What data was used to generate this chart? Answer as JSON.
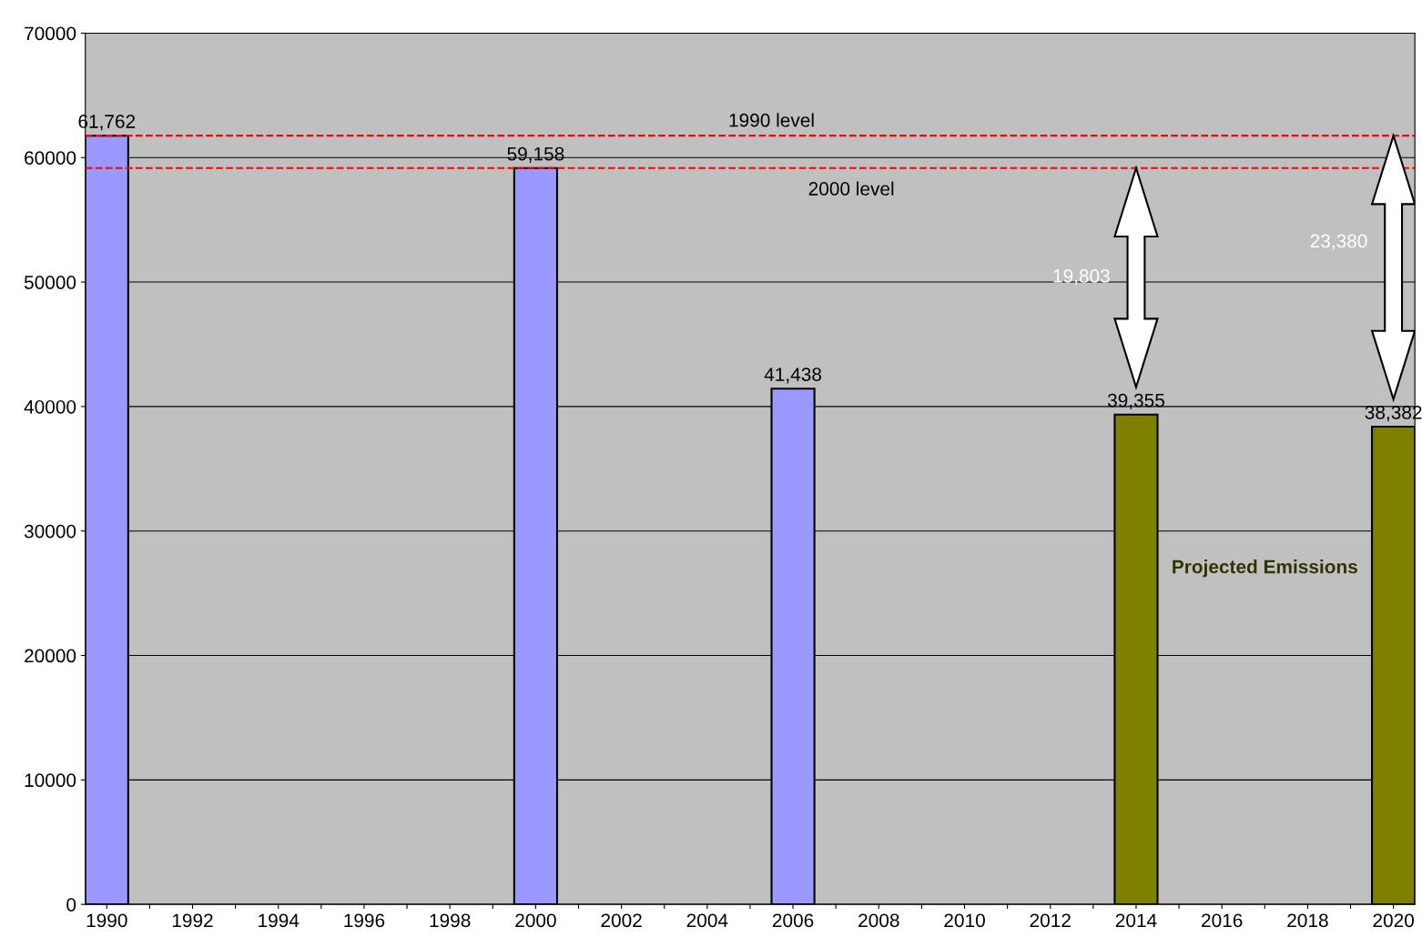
{
  "chart_data": {
    "type": "bar",
    "categories": [
      "1990",
      null,
      "1992",
      null,
      "1994",
      null,
      "1996",
      null,
      "1998",
      null,
      "2000",
      null,
      "2002",
      null,
      "2004",
      null,
      "2006",
      null,
      "2008",
      null,
      "2010",
      null,
      "2012",
      null,
      "2014",
      null,
      "2016",
      null,
      "2018",
      null,
      "2020"
    ],
    "series": [
      {
        "color": "#9999ff",
        "values": [
          61762,
          null,
          null,
          null,
          null,
          null,
          null,
          null,
          null,
          null,
          59158,
          null,
          null,
          null,
          null,
          null,
          41438,
          null,
          null,
          null,
          null,
          null,
          null,
          null,
          null,
          null,
          null,
          null,
          null,
          null,
          null
        ],
        "value_labels": [
          "61,762",
          null,
          null,
          null,
          null,
          null,
          null,
          null,
          null,
          null,
          "59,158",
          null,
          null,
          null,
          null,
          null,
          "41,438",
          null,
          null,
          null,
          null,
          null,
          null,
          null,
          null,
          null,
          null,
          null,
          null,
          null,
          null
        ]
      },
      {
        "color": "#808000",
        "values": [
          null,
          null,
          null,
          null,
          null,
          null,
          null,
          null,
          null,
          null,
          null,
          null,
          null,
          null,
          null,
          null,
          null,
          null,
          null,
          null,
          null,
          null,
          null,
          null,
          39355,
          null,
          null,
          null,
          null,
          null,
          38382
        ],
        "value_labels": [
          null,
          null,
          null,
          null,
          null,
          null,
          null,
          null,
          null,
          null,
          null,
          null,
          null,
          null,
          null,
          null,
          null,
          null,
          null,
          null,
          null,
          null,
          null,
          null,
          "39,355",
          null,
          null,
          null,
          null,
          null,
          "38,382"
        ]
      }
    ],
    "ylim": [
      0,
      70000
    ],
    "yticks": [
      0,
      10000,
      20000,
      30000,
      40000,
      50000,
      60000,
      70000
    ],
    "grid": "y",
    "ref_lines": [
      {
        "axis": "y",
        "value": 61762,
        "label": "1990 level",
        "color": "#ff0000",
        "line_style": "dashed"
      },
      {
        "axis": "y",
        "value": 59158,
        "label": "2000 level",
        "color": "#ff0000",
        "line_style": "dashed"
      }
    ],
    "annotations": [
      "19,803",
      "23,380",
      "Projected Emissions"
    ]
  }
}
